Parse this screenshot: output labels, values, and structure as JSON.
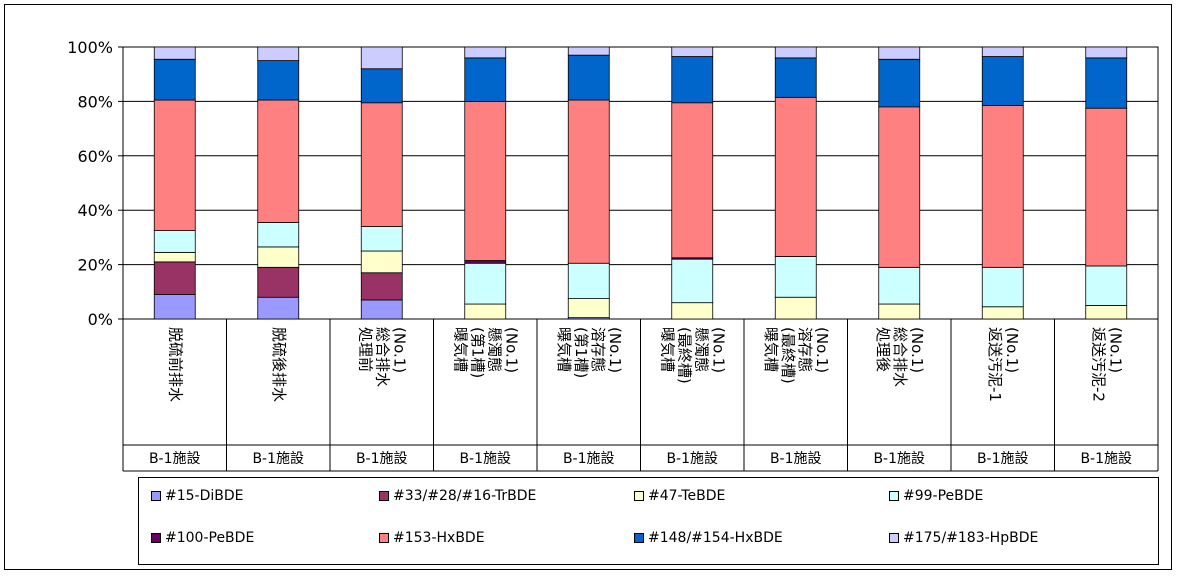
{
  "chart_data": {
    "type": "bar",
    "stacked": true,
    "percent": true,
    "ylim": [
      0,
      100
    ],
    "yticks": [
      "0%",
      "20%",
      "40%",
      "60%",
      "80%",
      "100%"
    ],
    "categories": [
      [
        "脱硫前排水"
      ],
      [
        "脱硫後排水"
      ],
      [
        "処理前",
        "総合排水",
        "(No.1)"
      ],
      [
        "曝気槽",
        "(第1槽)",
        "懸濁態",
        "(No.1)"
      ],
      [
        "曝気槽",
        "(第1槽)",
        "溶存態",
        "(No.1)"
      ],
      [
        "曝気槽",
        "(最終槽)",
        "懸濁態",
        "(No.1)"
      ],
      [
        "曝気槽",
        "(最終槽)",
        "溶存態",
        "(No.1)"
      ],
      [
        "処理後",
        "総合排水",
        "(No.1)"
      ],
      [
        "返送汚泥-1",
        "(No.1)"
      ],
      [
        "返送汚泥-2",
        "(No.1)"
      ]
    ],
    "facility": [
      "B-1施設",
      "B-1施設",
      "B-1施設",
      "B-1施設",
      "B-1施設",
      "B-1施設",
      "B-1施設",
      "B-1施設",
      "B-1施設",
      "B-1施設"
    ],
    "series": [
      {
        "name": "#15-DiBDE",
        "color": "#9999ff",
        "values": [
          9,
          8,
          7,
          0,
          0.5,
          0,
          0,
          0,
          0,
          0
        ]
      },
      {
        "name": "#33/#28/#16-TrBDE",
        "color": "#993366",
        "values": [
          12,
          11,
          10,
          0,
          0,
          0,
          0,
          0,
          0,
          0
        ]
      },
      {
        "name": "#47-TeBDE",
        "color": "#ffffcc",
        "values": [
          3.5,
          7.5,
          8,
          5.5,
          7,
          6,
          8,
          5.5,
          4.5,
          5
        ]
      },
      {
        "name": "#99-PeBDE",
        "color": "#ccffff",
        "values": [
          8,
          9,
          9,
          15,
          13,
          16,
          15,
          13.5,
          14.5,
          14.5
        ]
      },
      {
        "name": "#100-PeBDE",
        "color": "#660066",
        "values": [
          0,
          0,
          0,
          1,
          0,
          0.5,
          0,
          0,
          0,
          0
        ]
      },
      {
        "name": "#153-HxBDE",
        "color": "#ff8080",
        "values": [
          48,
          45,
          45.5,
          58.5,
          60,
          57,
          58.5,
          59,
          59.5,
          58
        ]
      },
      {
        "name": "#148/#154-HxBDE",
        "color": "#0066cc",
        "values": [
          15,
          14.5,
          12.5,
          16,
          16.5,
          17,
          14.5,
          17.5,
          18,
          18.5
        ]
      },
      {
        "name": "#175/#183-HpBDE",
        "color": "#ccccff",
        "values": [
          4.5,
          5,
          8,
          4,
          3,
          3.5,
          4,
          4.5,
          3.5,
          4
        ]
      }
    ]
  }
}
